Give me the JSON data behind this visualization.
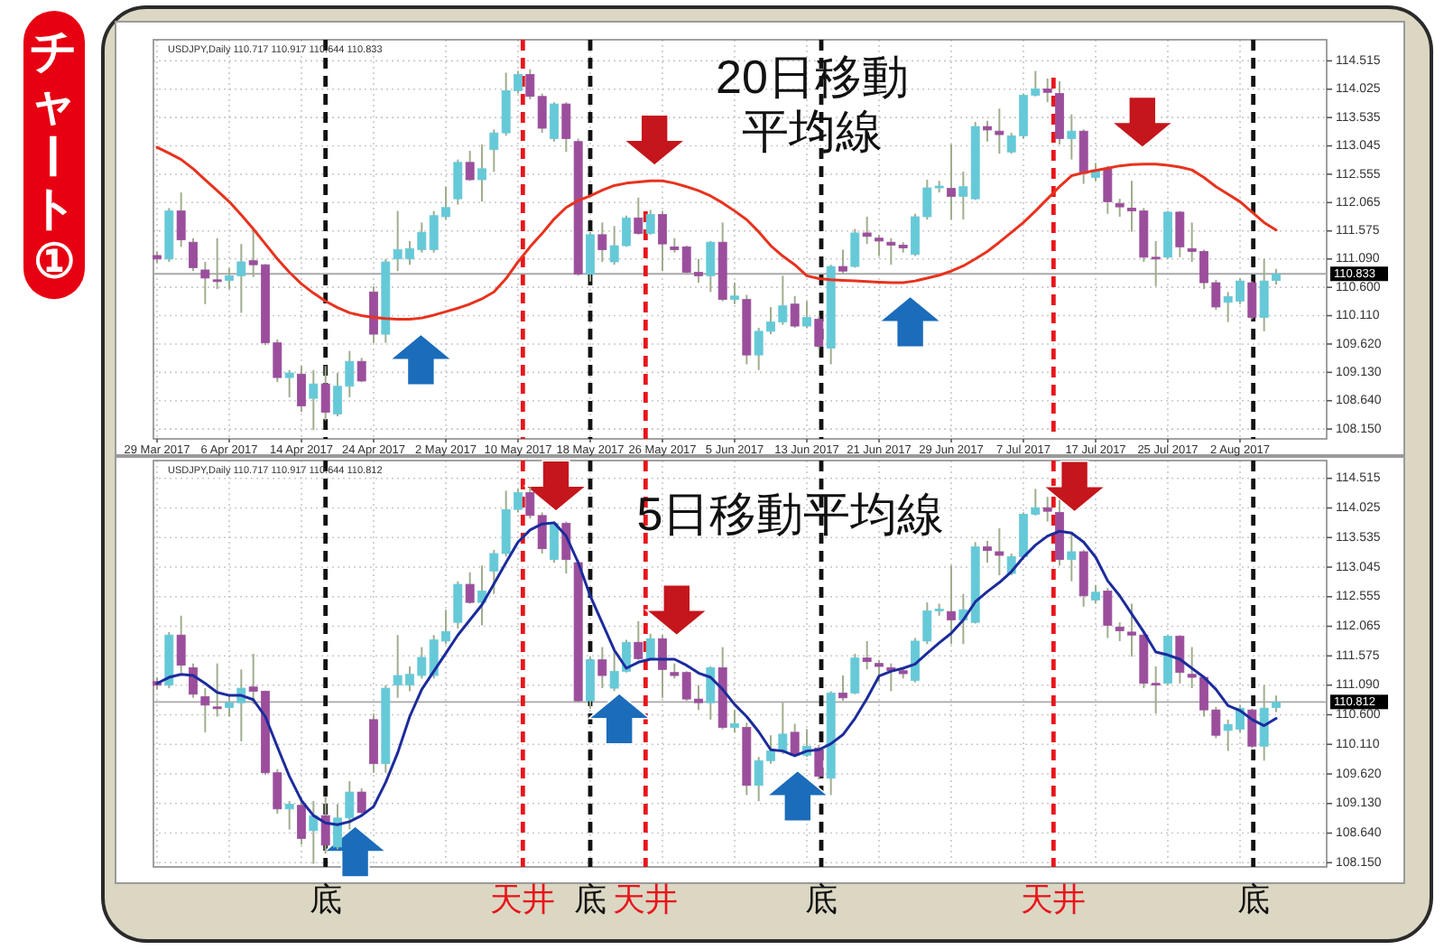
{
  "chart_data": [
    {
      "type": "candlestick",
      "title": "チャート①",
      "categories": [
        "29 Mar 2017",
        null,
        null,
        null,
        null,
        null,
        "6 Apr 2017",
        null,
        null,
        null,
        null,
        null,
        "14 Apr 2017",
        null,
        null,
        null,
        null,
        null,
        "24 Apr 2017",
        null,
        null,
        null,
        null,
        null,
        "2 May 2017",
        null,
        null,
        null,
        null,
        null,
        "10 May 2017",
        null,
        null,
        null,
        null,
        null,
        "18 May 2017",
        null,
        null,
        null,
        null,
        null,
        "26 May 2017",
        null,
        null,
        null,
        null,
        null,
        "5 Jun 2017",
        null,
        null,
        null,
        null,
        null,
        "13 Jun 2017",
        null,
        null,
        null,
        null,
        null,
        "21 Jun 2017",
        null,
        null,
        null,
        null,
        null,
        "29 Jun 2017",
        null,
        null,
        null,
        null,
        null,
        "7 Jul 2017",
        null,
        null,
        null,
        null,
        null,
        "17 Jul 2017",
        null,
        null,
        null,
        null,
        null,
        "25 Jul 2017",
        null,
        null,
        null,
        null,
        null,
        "2 Aug 2017",
        null,
        null,
        null
      ],
      "ohlc": [
        [
          111.15,
          111.22,
          111.02,
          111.09
        ],
        [
          111.09,
          111.97,
          111.04,
          111.92
        ],
        [
          111.92,
          112.24,
          111.3,
          111.42
        ],
        [
          111.38,
          111.45,
          110.88,
          110.94
        ],
        [
          110.9,
          111.04,
          110.31,
          110.76
        ],
        [
          110.73,
          111.45,
          110.57,
          110.72
        ],
        [
          110.72,
          110.94,
          110.57,
          110.8
        ],
        [
          110.8,
          111.35,
          110.16,
          111.04
        ],
        [
          111.06,
          111.61,
          110.78,
          110.99
        ],
        [
          110.99,
          111.0,
          109.6,
          109.64
        ],
        [
          109.64,
          109.7,
          108.96,
          109.04
        ],
        [
          109.04,
          109.17,
          108.7,
          109.12
        ],
        [
          109.1,
          109.24,
          108.45,
          108.55
        ],
        [
          108.68,
          109.17,
          108.13,
          108.93
        ],
        [
          108.93,
          109.24,
          108.3,
          108.44
        ],
        [
          108.41,
          109.12,
          108.37,
          108.89
        ],
        [
          108.89,
          109.5,
          108.7,
          109.32
        ],
        [
          109.32,
          109.38,
          108.96,
          108.98
        ],
        [
          110.52,
          110.62,
          109.64,
          109.79
        ],
        [
          109.79,
          111.09,
          109.64,
          111.04
        ],
        [
          111.09,
          111.92,
          110.88,
          111.25
        ],
        [
          111.09,
          111.4,
          110.99,
          111.27
        ],
        [
          111.25,
          111.72,
          111.2,
          111.55
        ],
        [
          111.25,
          111.92,
          111.2,
          111.84
        ],
        [
          111.82,
          112.34,
          111.77,
          111.98
        ],
        [
          112.13,
          112.81,
          112.03,
          112.76
        ],
        [
          112.76,
          112.96,
          112.44,
          112.46
        ],
        [
          112.46,
          113.07,
          112.08,
          112.65
        ],
        [
          112.98,
          113.33,
          112.6,
          113.27
        ],
        [
          113.27,
          114.31,
          113.22,
          114.0
        ],
        [
          114.0,
          114.34,
          113.95,
          114.28
        ],
        [
          114.28,
          114.37,
          113.85,
          113.9
        ],
        [
          113.9,
          113.95,
          113.27,
          113.35
        ],
        [
          113.17,
          113.8,
          113.12,
          113.77
        ],
        [
          113.77,
          113.8,
          112.94,
          113.17
        ],
        [
          113.12,
          113.17,
          110.8,
          110.83
        ],
        [
          110.83,
          111.56,
          110.7,
          111.51
        ],
        [
          111.51,
          111.72,
          111.04,
          111.25
        ],
        [
          111.04,
          111.66,
          110.99,
          111.32
        ],
        [
          111.32,
          111.84,
          111.3,
          111.8
        ],
        [
          111.8,
          112.15,
          111.51,
          111.53
        ],
        [
          111.53,
          111.94,
          111.51,
          111.86
        ],
        [
          111.86,
          111.92,
          110.88,
          111.35
        ],
        [
          111.3,
          111.45,
          111.2,
          111.25
        ],
        [
          111.3,
          111.32,
          110.83,
          110.86
        ],
        [
          110.86,
          111.09,
          110.68,
          110.8
        ],
        [
          110.8,
          111.4,
          110.52,
          111.38
        ],
        [
          111.38,
          111.72,
          110.36,
          110.39
        ],
        [
          110.39,
          110.68,
          110.31,
          110.45
        ],
        [
          110.39,
          110.47,
          109.27,
          109.43
        ],
        [
          109.43,
          109.9,
          109.17,
          109.84
        ],
        [
          109.84,
          110.26,
          109.79,
          110.0
        ],
        [
          110.0,
          110.8,
          109.95,
          110.28
        ],
        [
          110.31,
          110.45,
          109.9,
          109.93
        ],
        [
          109.93,
          110.36,
          109.9,
          110.08
        ],
        [
          110.05,
          110.1,
          109.53,
          109.58
        ],
        [
          109.55,
          110.99,
          109.27,
          110.96
        ],
        [
          110.96,
          111.25,
          110.83,
          110.88
        ],
        [
          110.96,
          111.61,
          110.94,
          111.54
        ],
        [
          111.54,
          111.82,
          111.35,
          111.48
        ],
        [
          111.45,
          111.51,
          111.14,
          111.4
        ],
        [
          111.38,
          111.45,
          110.99,
          111.33
        ],
        [
          111.33,
          111.38,
          111.2,
          111.28
        ],
        [
          111.17,
          111.87,
          111.14,
          111.82
        ],
        [
          111.82,
          112.46,
          111.77,
          112.32
        ],
        [
          112.33,
          112.44,
          112.24,
          112.35
        ],
        [
          112.31,
          113.07,
          111.77,
          112.17
        ],
        [
          112.17,
          112.6,
          111.77,
          112.34
        ],
        [
          112.13,
          113.46,
          112.11,
          113.38
        ],
        [
          113.38,
          113.48,
          113.12,
          113.32
        ],
        [
          113.3,
          113.69,
          112.91,
          113.24
        ],
        [
          112.94,
          113.27,
          112.91,
          113.22
        ],
        [
          113.22,
          113.95,
          113.17,
          113.92
        ],
        [
          113.92,
          114.34,
          113.9,
          114.03
        ],
        [
          114.03,
          114.21,
          113.8,
          113.97
        ],
        [
          113.95,
          114.16,
          113.07,
          113.17
        ],
        [
          113.17,
          113.59,
          112.81,
          113.3
        ],
        [
          113.3,
          113.33,
          112.39,
          112.57
        ],
        [
          112.5,
          112.75,
          112.44,
          112.63
        ],
        [
          112.65,
          112.7,
          111.87,
          112.08
        ],
        [
          112.05,
          112.13,
          111.82,
          111.99
        ],
        [
          111.97,
          112.44,
          111.56,
          111.92
        ],
        [
          111.92,
          111.97,
          111.04,
          111.12
        ],
        [
          111.12,
          111.4,
          110.62,
          111.09
        ],
        [
          111.12,
          111.92,
          111.09,
          111.9
        ],
        [
          111.9,
          111.92,
          111.12,
          111.3
        ],
        [
          111.27,
          111.72,
          111.04,
          111.22
        ],
        [
          111.22,
          111.25,
          110.57,
          110.68
        ],
        [
          110.68,
          110.73,
          110.21,
          110.26
        ],
        [
          110.34,
          110.52,
          110.0,
          110.44
        ],
        [
          110.36,
          110.76,
          110.31,
          110.71
        ],
        [
          110.68,
          110.7,
          110.05,
          110.08
        ],
        [
          110.08,
          111.09,
          109.84,
          110.71
        ],
        [
          110.717,
          110.917,
          110.644,
          110.833
        ]
      ],
      "colors": [
        "#9b4e9c",
        "#66c9d8",
        "#9b4e9c",
        "#9b4e9c",
        "#9b4e9c",
        "#9b4e9c",
        "#66c9d8",
        "#66c9d8",
        "#9b4e9c",
        "#9b4e9c",
        "#9b4e9c",
        "#66c9d8",
        "#9b4e9c",
        "#66c9d8",
        "#9b4e9c",
        "#66c9d8",
        "#66c9d8",
        "#9b4e9c",
        "#9b4e9c",
        "#66c9d8",
        "#66c9d8",
        "#66c9d8",
        "#66c9d8",
        "#66c9d8",
        "#66c9d8",
        "#66c9d8",
        "#9b4e9c",
        "#66c9d8",
        "#66c9d8",
        "#66c9d8",
        "#66c9d8",
        "#9b4e9c",
        "#9b4e9c",
        "#66c9d8",
        "#9b4e9c",
        "#9b4e9c",
        "#66c9d8",
        "#9b4e9c",
        "#66c9d8",
        "#66c9d8",
        "#9b4e9c",
        "#66c9d8",
        "#9b4e9c",
        "#9b4e9c",
        "#9b4e9c",
        "#9b4e9c",
        "#66c9d8",
        "#9b4e9c",
        "#66c9d8",
        "#9b4e9c",
        "#66c9d8",
        "#66c9d8",
        "#66c9d8",
        "#9b4e9c",
        "#66c9d8",
        "#9b4e9c",
        "#66c9d8",
        "#9b4e9c",
        "#66c9d8",
        "#9b4e9c",
        "#9b4e9c",
        "#9b4e9c",
        "#9b4e9c",
        "#66c9d8",
        "#66c9d8",
        "#66c9d8",
        "#9b4e9c",
        "#66c9d8",
        "#66c9d8",
        "#9b4e9c",
        "#9b4e9c",
        "#66c9d8",
        "#66c9d8",
        "#66c9d8",
        "#9b4e9c",
        "#9b4e9c",
        "#66c9d8",
        "#9b4e9c",
        "#66c9d8",
        "#9b4e9c",
        "#9b4e9c",
        "#9b4e9c",
        "#9b4e9c",
        "#9b4e9c",
        "#66c9d8",
        "#9b4e9c",
        "#9b4e9c",
        "#9b4e9c",
        "#9b4e9c",
        "#66c9d8",
        "#66c9d8",
        "#9b4e9c",
        "#66c9d8",
        "#66c9d8"
      ],
      "series": [
        {
          "type": "line",
          "name": "20日移動平均線",
          "color": "#e8321e",
          "values": [
            113.02,
            112.92,
            112.81,
            112.65,
            112.46,
            112.27,
            112.08,
            111.85,
            111.61,
            111.35,
            111.09,
            110.86,
            110.66,
            110.5,
            110.36,
            110.25,
            110.16,
            110.11,
            110.08,
            110.06,
            110.05,
            110.05,
            110.07,
            110.12,
            110.18,
            110.24,
            110.31,
            110.4,
            110.52,
            110.75,
            111.04,
            111.3,
            111.53,
            111.78,
            111.98,
            112.1,
            112.18,
            112.28,
            112.36,
            112.4,
            112.42,
            112.44,
            112.44,
            112.4,
            112.34,
            112.27,
            112.18,
            112.06,
            111.92,
            111.77,
            111.56,
            111.32,
            111.14,
            110.99,
            110.8,
            110.75,
            110.73,
            110.72,
            110.71,
            110.7,
            110.69,
            110.68,
            110.68,
            110.71,
            110.76,
            110.81,
            110.88,
            110.97,
            111.09,
            111.22,
            111.38,
            111.55,
            111.72,
            111.92,
            112.13,
            112.34,
            112.53,
            112.58,
            112.62,
            112.66,
            112.7,
            112.72,
            112.73,
            112.73,
            112.71,
            112.68,
            112.63,
            112.5,
            112.34,
            112.21,
            112.08,
            111.9,
            111.72,
            111.59
          ]
        }
      ],
      "ylim": [
        107.98,
        114.88
      ],
      "yticks": [
        {
          "value": 108.15,
          "label": "108.150"
        },
        {
          "value": 108.64,
          "label": "108.640"
        },
        {
          "value": 109.13,
          "label": "109.130"
        },
        {
          "value": 109.62,
          "label": "109.620"
        },
        {
          "value": 110.11,
          "label": "110.110"
        },
        {
          "value": 110.6,
          "label": "110.600"
        },
        {
          "value": 111.09,
          "label": "111.090"
        },
        {
          "value": 111.575,
          "label": "111.575"
        },
        {
          "value": 112.065,
          "label": "112.065"
        },
        {
          "value": 112.555,
          "label": "112.555"
        },
        {
          "value": 113.045,
          "label": "113.045"
        },
        {
          "value": 113.535,
          "label": "113.535"
        },
        {
          "value": 114.025,
          "label": "114.025"
        },
        {
          "value": 114.515,
          "label": "114.515"
        }
      ],
      "grid": true,
      "ref_lines": [
        {
          "axis": "y",
          "value": 110.833,
          "label": "110.833",
          "color": "#a8a8a8"
        }
      ],
      "annotations": [
        "USDJPY,Daily 110.717 110.917 110.644 110.833"
      ]
    },
    {
      "type": "candlestick",
      "categories": [
        null,
        null,
        null,
        null,
        null,
        null,
        null,
        null,
        null,
        null,
        null,
        null,
        null,
        null,
        null,
        null,
        null,
        null,
        null,
        null,
        null,
        null,
        null,
        null,
        null,
        null,
        null,
        null,
        null,
        null,
        null,
        null,
        null,
        null,
        null,
        null,
        null,
        null,
        null,
        null,
        null,
        null,
        null,
        null,
        null,
        null,
        null,
        null,
        null,
        null,
        null,
        null,
        null,
        null,
        null,
        null,
        null,
        null,
        null,
        null,
        null,
        null,
        null,
        null,
        null,
        null,
        null,
        null,
        null,
        null,
        null,
        null,
        null,
        null,
        null,
        null,
        null,
        null,
        null,
        null,
        null,
        null,
        null,
        null,
        null,
        null,
        null,
        null,
        null,
        null,
        null,
        null,
        null,
        null
      ],
      "ohlc": [
        [
          111.15,
          111.22,
          111.02,
          111.09
        ],
        [
          111.09,
          111.97,
          111.04,
          111.92
        ],
        [
          111.92,
          112.24,
          111.3,
          111.42
        ],
        [
          111.38,
          111.45,
          110.88,
          110.94
        ],
        [
          110.9,
          111.04,
          110.31,
          110.76
        ],
        [
          110.73,
          111.45,
          110.57,
          110.72
        ],
        [
          110.72,
          110.94,
          110.57,
          110.8
        ],
        [
          110.8,
          111.35,
          110.16,
          111.04
        ],
        [
          111.06,
          111.61,
          110.78,
          110.99
        ],
        [
          110.99,
          111.0,
          109.6,
          109.64
        ],
        [
          109.64,
          109.7,
          108.96,
          109.04
        ],
        [
          109.04,
          109.17,
          108.7,
          109.12
        ],
        [
          109.1,
          109.24,
          108.45,
          108.55
        ],
        [
          108.68,
          109.17,
          108.13,
          108.93
        ],
        [
          108.93,
          109.24,
          108.3,
          108.44
        ],
        [
          108.41,
          109.12,
          108.37,
          108.89
        ],
        [
          108.89,
          109.5,
          108.7,
          109.32
        ],
        [
          109.32,
          109.38,
          108.96,
          108.98
        ],
        [
          110.52,
          110.62,
          109.64,
          109.79
        ],
        [
          109.79,
          111.09,
          109.64,
          111.04
        ],
        [
          111.09,
          111.92,
          110.88,
          111.25
        ],
        [
          111.09,
          111.4,
          110.99,
          111.27
        ],
        [
          111.25,
          111.72,
          111.2,
          111.55
        ],
        [
          111.25,
          111.92,
          111.2,
          111.84
        ],
        [
          111.82,
          112.34,
          111.77,
          111.98
        ],
        [
          112.13,
          112.81,
          112.03,
          112.76
        ],
        [
          112.76,
          112.96,
          112.44,
          112.46
        ],
        [
          112.46,
          113.07,
          112.08,
          112.65
        ],
        [
          112.98,
          113.33,
          112.6,
          113.27
        ],
        [
          113.27,
          114.31,
          113.22,
          114.0
        ],
        [
          114.0,
          114.34,
          113.95,
          114.28
        ],
        [
          114.28,
          114.37,
          113.85,
          113.9
        ],
        [
          113.9,
          113.95,
          113.27,
          113.35
        ],
        [
          113.17,
          113.8,
          113.12,
          113.77
        ],
        [
          113.77,
          113.8,
          112.94,
          113.17
        ],
        [
          113.12,
          113.17,
          110.8,
          110.83
        ],
        [
          110.83,
          111.56,
          110.7,
          111.51
        ],
        [
          111.51,
          111.72,
          111.04,
          111.25
        ],
        [
          111.04,
          111.66,
          110.99,
          111.32
        ],
        [
          111.32,
          111.84,
          111.3,
          111.8
        ],
        [
          111.8,
          112.15,
          111.51,
          111.53
        ],
        [
          111.53,
          111.94,
          111.51,
          111.86
        ],
        [
          111.86,
          111.92,
          110.88,
          111.35
        ],
        [
          111.3,
          111.45,
          111.2,
          111.25
        ],
        [
          111.3,
          111.32,
          110.83,
          110.86
        ],
        [
          110.86,
          111.09,
          110.68,
          110.8
        ],
        [
          110.8,
          111.4,
          110.52,
          111.38
        ],
        [
          111.38,
          111.72,
          110.36,
          110.39
        ],
        [
          110.39,
          110.68,
          110.31,
          110.45
        ],
        [
          110.39,
          110.47,
          109.27,
          109.43
        ],
        [
          109.43,
          109.9,
          109.17,
          109.84
        ],
        [
          109.84,
          110.26,
          109.79,
          110.0
        ],
        [
          110.0,
          110.8,
          109.95,
          110.28
        ],
        [
          110.31,
          110.45,
          109.9,
          109.93
        ],
        [
          109.93,
          110.36,
          109.9,
          110.08
        ],
        [
          110.05,
          110.1,
          109.53,
          109.58
        ],
        [
          109.55,
          110.99,
          109.27,
          110.96
        ],
        [
          110.96,
          111.25,
          110.83,
          110.88
        ],
        [
          110.96,
          111.61,
          110.94,
          111.54
        ],
        [
          111.54,
          111.82,
          111.35,
          111.48
        ],
        [
          111.45,
          111.51,
          111.14,
          111.4
        ],
        [
          111.38,
          111.45,
          110.99,
          111.33
        ],
        [
          111.33,
          111.38,
          111.2,
          111.28
        ],
        [
          111.17,
          111.87,
          111.14,
          111.82
        ],
        [
          111.82,
          112.46,
          111.77,
          112.32
        ],
        [
          112.33,
          112.44,
          112.24,
          112.35
        ],
        [
          112.31,
          113.07,
          111.77,
          112.17
        ],
        [
          112.17,
          112.6,
          111.77,
          112.34
        ],
        [
          112.13,
          113.46,
          112.11,
          113.38
        ],
        [
          113.38,
          113.48,
          113.12,
          113.32
        ],
        [
          113.3,
          113.69,
          112.91,
          113.24
        ],
        [
          112.94,
          113.27,
          112.91,
          113.22
        ],
        [
          113.22,
          113.95,
          113.17,
          113.92
        ],
        [
          113.92,
          114.34,
          113.9,
          114.03
        ],
        [
          114.03,
          114.21,
          113.8,
          113.97
        ],
        [
          113.95,
          114.16,
          113.07,
          113.17
        ],
        [
          113.17,
          113.59,
          112.81,
          113.3
        ],
        [
          113.3,
          113.33,
          112.39,
          112.57
        ],
        [
          112.5,
          112.75,
          112.44,
          112.63
        ],
        [
          112.65,
          112.7,
          111.87,
          112.08
        ],
        [
          112.05,
          112.13,
          111.82,
          111.99
        ],
        [
          111.97,
          112.44,
          111.56,
          111.92
        ],
        [
          111.92,
          111.97,
          111.04,
          111.12
        ],
        [
          111.12,
          111.4,
          110.62,
          111.09
        ],
        [
          111.12,
          111.92,
          111.09,
          111.9
        ],
        [
          111.9,
          111.92,
          111.12,
          111.3
        ],
        [
          111.27,
          111.72,
          111.04,
          111.22
        ],
        [
          111.22,
          111.25,
          110.57,
          110.68
        ],
        [
          110.68,
          110.73,
          110.21,
          110.26
        ],
        [
          110.34,
          110.52,
          110.0,
          110.44
        ],
        [
          110.36,
          110.76,
          110.31,
          110.71
        ],
        [
          110.68,
          110.7,
          110.05,
          110.08
        ],
        [
          110.08,
          111.09,
          109.84,
          110.71
        ],
        [
          110.717,
          110.917,
          110.644,
          110.812
        ]
      ],
      "colors": [
        "#9b4e9c",
        "#66c9d8",
        "#9b4e9c",
        "#9b4e9c",
        "#9b4e9c",
        "#9b4e9c",
        "#66c9d8",
        "#66c9d8",
        "#9b4e9c",
        "#9b4e9c",
        "#9b4e9c",
        "#66c9d8",
        "#9b4e9c",
        "#66c9d8",
        "#9b4e9c",
        "#66c9d8",
        "#66c9d8",
        "#9b4e9c",
        "#9b4e9c",
        "#66c9d8",
        "#66c9d8",
        "#66c9d8",
        "#66c9d8",
        "#66c9d8",
        "#66c9d8",
        "#66c9d8",
        "#9b4e9c",
        "#66c9d8",
        "#66c9d8",
        "#66c9d8",
        "#66c9d8",
        "#9b4e9c",
        "#9b4e9c",
        "#66c9d8",
        "#9b4e9c",
        "#9b4e9c",
        "#66c9d8",
        "#9b4e9c",
        "#66c9d8",
        "#66c9d8",
        "#9b4e9c",
        "#66c9d8",
        "#9b4e9c",
        "#9b4e9c",
        "#9b4e9c",
        "#9b4e9c",
        "#66c9d8",
        "#9b4e9c",
        "#66c9d8",
        "#9b4e9c",
        "#66c9d8",
        "#66c9d8",
        "#66c9d8",
        "#9b4e9c",
        "#66c9d8",
        "#9b4e9c",
        "#66c9d8",
        "#9b4e9c",
        "#66c9d8",
        "#9b4e9c",
        "#9b4e9c",
        "#9b4e9c",
        "#9b4e9c",
        "#66c9d8",
        "#66c9d8",
        "#66c9d8",
        "#9b4e9c",
        "#66c9d8",
        "#66c9d8",
        "#9b4e9c",
        "#9b4e9c",
        "#66c9d8",
        "#66c9d8",
        "#66c9d8",
        "#9b4e9c",
        "#9b4e9c",
        "#66c9d8",
        "#9b4e9c",
        "#66c9d8",
        "#9b4e9c",
        "#9b4e9c",
        "#9b4e9c",
        "#9b4e9c",
        "#9b4e9c",
        "#66c9d8",
        "#9b4e9c",
        "#9b4e9c",
        "#9b4e9c",
        "#9b4e9c",
        "#66c9d8",
        "#66c9d8",
        "#9b4e9c",
        "#66c9d8",
        "#66c9d8"
      ],
      "series": [
        {
          "type": "line",
          "name": "5日移動平均線",
          "color": "#1c2b9c",
          "values": [
            111.12,
            111.22,
            111.27,
            111.25,
            111.12,
            110.97,
            110.92,
            110.92,
            110.85,
            110.57,
            110.07,
            109.58,
            109.18,
            108.93,
            108.81,
            108.78,
            108.83,
            108.93,
            109.08,
            109.48,
            109.97,
            110.57,
            111.02,
            111.32,
            111.62,
            111.92,
            112.17,
            112.42,
            112.77,
            113.12,
            113.46,
            113.66,
            113.76,
            113.78,
            113.56,
            113.12,
            112.57,
            112.12,
            111.67,
            111.37,
            111.47,
            111.52,
            111.52,
            111.52,
            111.42,
            111.29,
            111.22,
            111.02,
            110.77,
            110.57,
            110.32,
            110.02,
            110.0,
            109.92,
            110.0,
            110.02,
            110.12,
            110.27,
            110.54,
            110.87,
            111.24,
            111.32,
            111.37,
            111.44,
            111.62,
            111.79,
            111.95,
            112.17,
            112.47,
            112.64,
            112.79,
            112.97,
            113.21,
            113.41,
            113.56,
            113.64,
            113.61,
            113.46,
            113.21,
            112.82,
            112.57,
            112.27,
            111.97,
            111.64,
            111.59,
            111.52,
            111.37,
            111.22,
            111.02,
            110.75,
            110.67,
            110.52,
            110.42,
            110.54
          ]
        }
      ],
      "ylim": [
        108.08,
        114.81
      ],
      "yticks": [
        {
          "value": 108.15,
          "label": "108.150"
        },
        {
          "value": 108.64,
          "label": "108.640"
        },
        {
          "value": 109.13,
          "label": "109.130"
        },
        {
          "value": 109.62,
          "label": "109.620"
        },
        {
          "value": 110.11,
          "label": "110.110"
        },
        {
          "value": 110.6,
          "label": "110.600"
        },
        {
          "value": 111.09,
          "label": "111.090"
        },
        {
          "value": 111.575,
          "label": "111.575"
        },
        {
          "value": 112.065,
          "label": "112.065"
        },
        {
          "value": 112.555,
          "label": "112.555"
        },
        {
          "value": 113.045,
          "label": "113.045"
        },
        {
          "value": 113.535,
          "label": "113.535"
        },
        {
          "value": 114.025,
          "label": "114.025"
        },
        {
          "value": 114.515,
          "label": "114.515"
        }
      ],
      "grid": true,
      "ref_lines": [
        {
          "axis": "y",
          "value": 110.812,
          "label": "110.812",
          "color": "#a8a8a8"
        }
      ],
      "annotations": [
        "USDJPY,Daily 110.717 110.917 110.644 110.812",
        "底",
        "天井",
        "底",
        "天井",
        "底",
        "天井",
        "底"
      ]
    }
  ]
}
